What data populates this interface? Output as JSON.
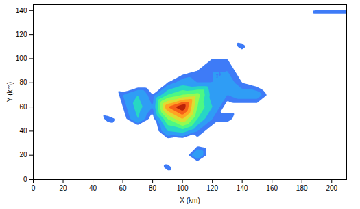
{
  "chart_data": {
    "type": "contour",
    "x_label": "X (km)",
    "y_label": "Y (km)",
    "xlim": [
      0,
      210
    ],
    "ylim": [
      0,
      145
    ],
    "xticks": [
      0,
      20,
      40,
      60,
      80,
      100,
      120,
      140,
      160,
      180,
      200
    ],
    "yticks": [
      0,
      20,
      40,
      60,
      80,
      100,
      120,
      140
    ],
    "grid": false,
    "grid_x": [
      30,
      40,
      50,
      60,
      70,
      80,
      90,
      100,
      110,
      120,
      130,
      140,
      150,
      160,
      170,
      180,
      190
    ],
    "grid_y": [
      0,
      10,
      20,
      30,
      40,
      50,
      60,
      70,
      80,
      90,
      100,
      110,
      120,
      130,
      140
    ],
    "z": [
      [
        0,
        0,
        0,
        0,
        0,
        0,
        0,
        0,
        0,
        0,
        0,
        0,
        0,
        0,
        0,
        0,
        0
      ],
      [
        0,
        0,
        0,
        0,
        0,
        0,
        0.2,
        0,
        0,
        0,
        0,
        0,
        0,
        0,
        0,
        0,
        0
      ],
      [
        0,
        0,
        0,
        0,
        0,
        0,
        0,
        0.05,
        0.3,
        0.05,
        0,
        0,
        0,
        0,
        0,
        0,
        0
      ],
      [
        0,
        0,
        0,
        0,
        0,
        0.05,
        0.05,
        0,
        0.1,
        0.05,
        0,
        0,
        0,
        0,
        0,
        0,
        0
      ],
      [
        0,
        0,
        0,
        0.05,
        0,
        0.05,
        0.3,
        0.35,
        0.2,
        0.1,
        0,
        0.05,
        0,
        0,
        0,
        0,
        0
      ],
      [
        0,
        0,
        0.2,
        0.1,
        0.3,
        0.1,
        0.5,
        0.7,
        0.4,
        0.2,
        0.2,
        0.05,
        0.05,
        0,
        0,
        0,
        0
      ],
      [
        0,
        0.05,
        0,
        0.15,
        0.35,
        0.2,
        0.8,
        1.0,
        0.5,
        0.3,
        0.1,
        0.1,
        0.1,
        0.1,
        0,
        0,
        0
      ],
      [
        0.05,
        0.05,
        0,
        0.2,
        0.3,
        0.15,
        0.4,
        0.5,
        0.55,
        0.25,
        0.2,
        0.25,
        0.25,
        0.1,
        0.05,
        0,
        0
      ],
      [
        0.05,
        0,
        0.05,
        0,
        0.05,
        0.05,
        0.15,
        0.25,
        0.2,
        0.2,
        0.25,
        0.15,
        0.1,
        0,
        0.05,
        0,
        0
      ],
      [
        0,
        0,
        0,
        0,
        0,
        0.05,
        0.1,
        0.1,
        0.15,
        0.2,
        0.2,
        0.1,
        0.05,
        0,
        0,
        0,
        0
      ],
      [
        0,
        0,
        0,
        0,
        0,
        0,
        0,
        0,
        0.1,
        0.15,
        0.15,
        0,
        0.05,
        0,
        0,
        0,
        0
      ],
      [
        0,
        0,
        0,
        0,
        0,
        0,
        0,
        0,
        0.05,
        0,
        0.05,
        0.2,
        0,
        0,
        0,
        0,
        0
      ],
      [
        0,
        0,
        0,
        0,
        0,
        0,
        0,
        0,
        0,
        0,
        0.05,
        0,
        0,
        0,
        0,
        0,
        0
      ],
      [
        0,
        0,
        0,
        0,
        0,
        0,
        0,
        0,
        0,
        0,
        0.05,
        0,
        0,
        0,
        0,
        0,
        0
      ],
      [
        0,
        0,
        0,
        0,
        0,
        0,
        0,
        0,
        0,
        0,
        0,
        0,
        0,
        0,
        0,
        0,
        0.2
      ]
    ],
    "zlim": [
      0,
      1
    ],
    "line_levels": [
      0.02,
      0.04,
      0.06,
      0.08,
      0.1,
      0.12,
      0.14
    ],
    "fill_levels": [
      0.15,
      0.2,
      0.3,
      0.4,
      0.5,
      0.6,
      0.7,
      0.8,
      0.9
    ],
    "color": "#1a2a6c"
  }
}
